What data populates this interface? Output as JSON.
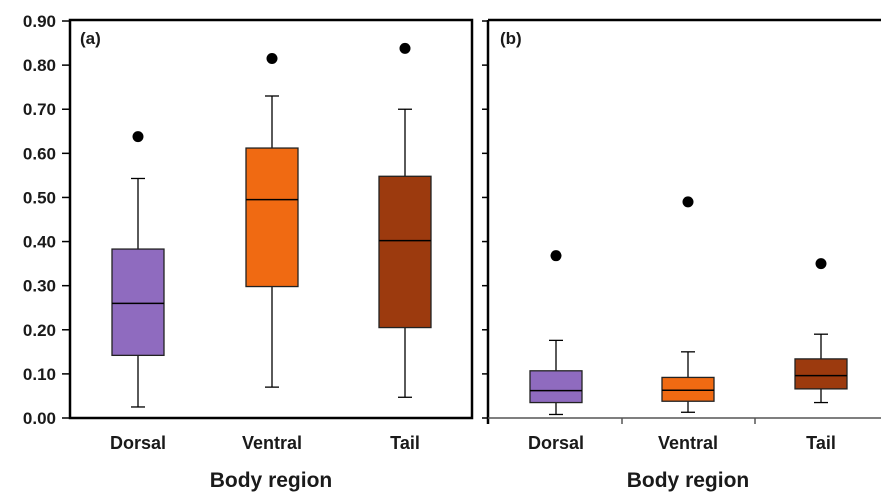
{
  "chart_data": [
    {
      "type": "box",
      "panel_label": "(a)",
      "xlabel": "Body region",
      "ylabel": "",
      "ylim": [
        0,
        0.9
      ],
      "yticks": [
        "0.00",
        "0.10",
        "0.20",
        "0.30",
        "0.40",
        "0.50",
        "0.60",
        "0.70",
        "0.80",
        "0.90"
      ],
      "categories": [
        "Dorsal",
        "Ventral",
        "Tail"
      ],
      "colors": [
        "#8f6bbf",
        "#f06a12",
        "#9c3a0e"
      ],
      "boxes": [
        {
          "category": "Dorsal",
          "whisker_low": 0.025,
          "q1": 0.142,
          "median": 0.26,
          "q3": 0.383,
          "whisker_high": 0.543,
          "outliers": [
            0.638
          ]
        },
        {
          "category": "Ventral",
          "whisker_low": 0.07,
          "q1": 0.298,
          "median": 0.495,
          "q3": 0.612,
          "whisker_high": 0.73,
          "outliers": [
            0.815
          ]
        },
        {
          "category": "Tail",
          "whisker_low": 0.047,
          "q1": 0.205,
          "median": 0.402,
          "q3": 0.548,
          "whisker_high": 0.7,
          "outliers": [
            0.838
          ]
        }
      ]
    },
    {
      "type": "box",
      "panel_label": "(b)",
      "xlabel": "Body region",
      "ylabel": "",
      "ylim": [
        0,
        0.9
      ],
      "categories": [
        "Dorsal",
        "Ventral",
        "Tail"
      ],
      "colors": [
        "#8f6bbf",
        "#f06a12",
        "#9c3a0e"
      ],
      "boxes": [
        {
          "category": "Dorsal",
          "whisker_low": 0.008,
          "q1": 0.035,
          "median": 0.062,
          "q3": 0.107,
          "whisker_high": 0.176,
          "outliers": [
            0.368
          ]
        },
        {
          "category": "Ventral",
          "whisker_low": 0.013,
          "q1": 0.038,
          "median": 0.063,
          "q3": 0.092,
          "whisker_high": 0.15,
          "outliers": [
            0.49
          ]
        },
        {
          "category": "Tail",
          "whisker_low": 0.035,
          "q1": 0.066,
          "median": 0.096,
          "q3": 0.134,
          "whisker_high": 0.19,
          "outliers": [
            0.35
          ]
        }
      ]
    }
  ]
}
